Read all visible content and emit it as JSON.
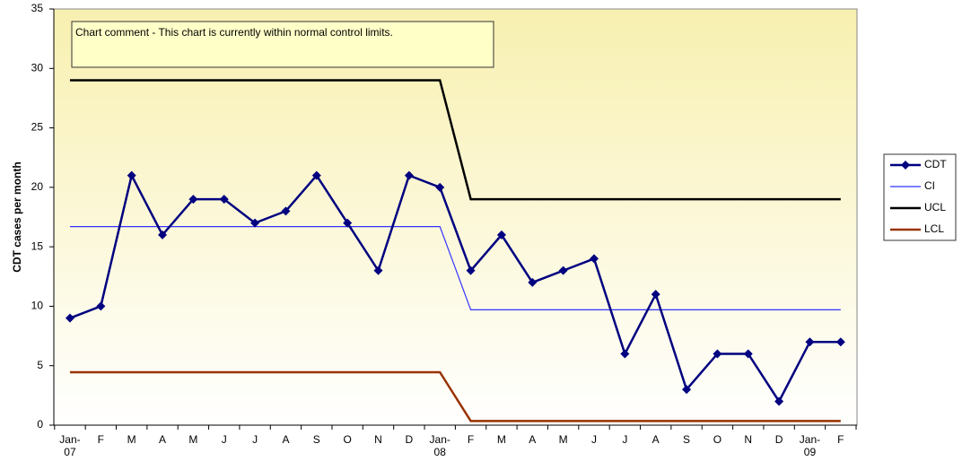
{
  "chart_data": {
    "type": "line",
    "annotation": "Chart comment - This chart is currently within normal control limits.",
    "ylabel": "CDT cases per month",
    "categories": [
      "Jan-\n07",
      "F",
      "M",
      "A",
      "M",
      "J",
      "J",
      "A",
      "S",
      "O",
      "N",
      "D",
      "Jan-\n08",
      "F",
      "M",
      "A",
      "M",
      "J",
      "J",
      "A",
      "S",
      "O",
      "N",
      "D",
      "Jan-\n09",
      "F"
    ],
    "series": [
      {
        "name": "CDT",
        "color": "#000080",
        "marker": "diamond",
        "width": 2.5,
        "values": [
          9,
          10,
          21,
          16,
          19,
          19,
          17,
          18,
          21,
          17,
          13,
          21,
          20,
          13,
          16,
          12,
          13,
          14,
          6,
          11,
          3,
          6,
          6,
          2,
          7,
          7
        ]
      },
      {
        "name": "CI",
        "color": "#3333ff",
        "width": 1.2,
        "values": [
          16.7,
          16.7,
          16.7,
          16.7,
          16.7,
          16.7,
          16.7,
          16.7,
          16.7,
          16.7,
          16.7,
          16.7,
          16.7,
          9.7,
          9.7,
          9.7,
          9.7,
          9.7,
          9.7,
          9.7,
          9.7,
          9.7,
          9.7,
          9.7,
          9.7,
          9.7
        ]
      },
      {
        "name": "UCL",
        "color": "#000000",
        "width": 2.5,
        "values": [
          29,
          29,
          29,
          29,
          29,
          29,
          29,
          29,
          29,
          29,
          29,
          29,
          29,
          19,
          19,
          19,
          19,
          19,
          19,
          19,
          19,
          19,
          19,
          19,
          19,
          19
        ]
      },
      {
        "name": "LCL",
        "color": "#993300",
        "width": 2.5,
        "values": [
          4.45,
          4.45,
          4.45,
          4.45,
          4.45,
          4.45,
          4.45,
          4.45,
          4.45,
          4.45,
          4.45,
          4.45,
          4.45,
          0.35,
          0.35,
          0.35,
          0.35,
          0.35,
          0.35,
          0.35,
          0.35,
          0.35,
          0.35,
          0.35,
          0.35,
          0.35
        ]
      }
    ],
    "ylim": [
      0,
      35
    ],
    "yticks": [
      0,
      5,
      10,
      15,
      20,
      25,
      30,
      35
    ],
    "grid": false,
    "legend": "right"
  }
}
